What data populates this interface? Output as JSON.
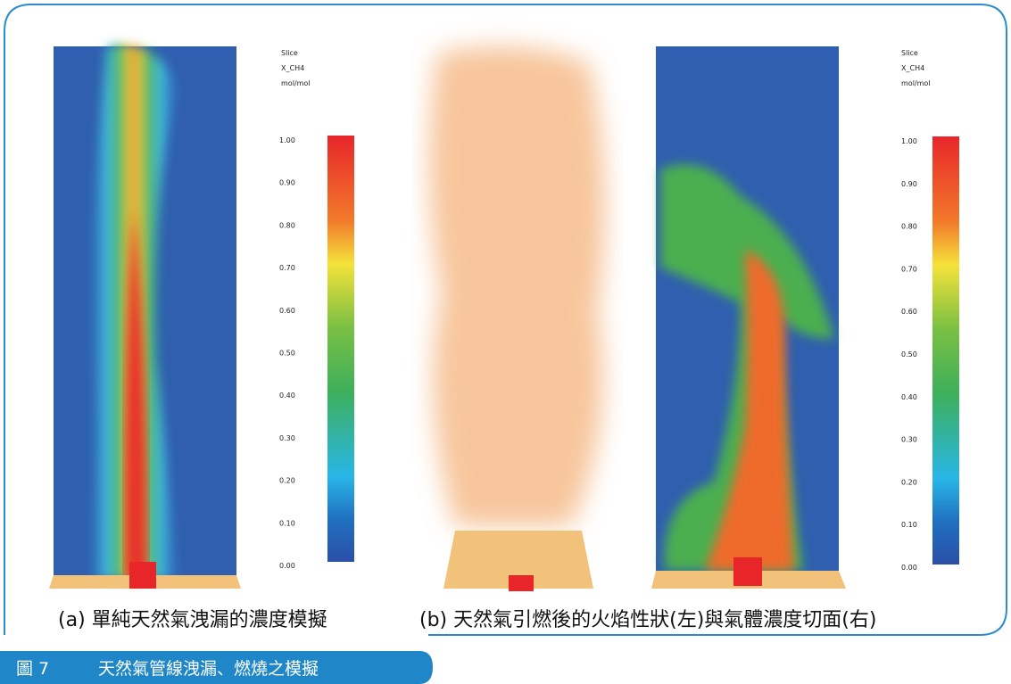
{
  "panels": [
    {
      "legend": [
        "Slice",
        "X_CH4",
        "mol/mol"
      ],
      "ticks": [
        "1.00",
        "0.90",
        "0.80",
        "0.70",
        "0.60",
        "0.50",
        "0.40",
        "0.30",
        "0.20",
        "0.10",
        "0.00"
      ]
    },
    {
      "legend": [
        "Slice",
        "X_CH4",
        "mol/mol"
      ],
      "ticks": [
        "1.00",
        "0.90",
        "0.80",
        "0.70",
        "0.60",
        "0.50",
        "0.40",
        "0.30",
        "0.20",
        "0.10",
        "0.00"
      ]
    }
  ],
  "captions": [
    "(a) 單純天然氣洩漏的濃度模擬",
    "(b) 天然氣引燃後的火焰性狀(左)與氣體濃度切面(右)"
  ],
  "figure": {
    "label": "圖 7",
    "title": "天然氣管線洩漏、燃燒之模擬"
  }
}
